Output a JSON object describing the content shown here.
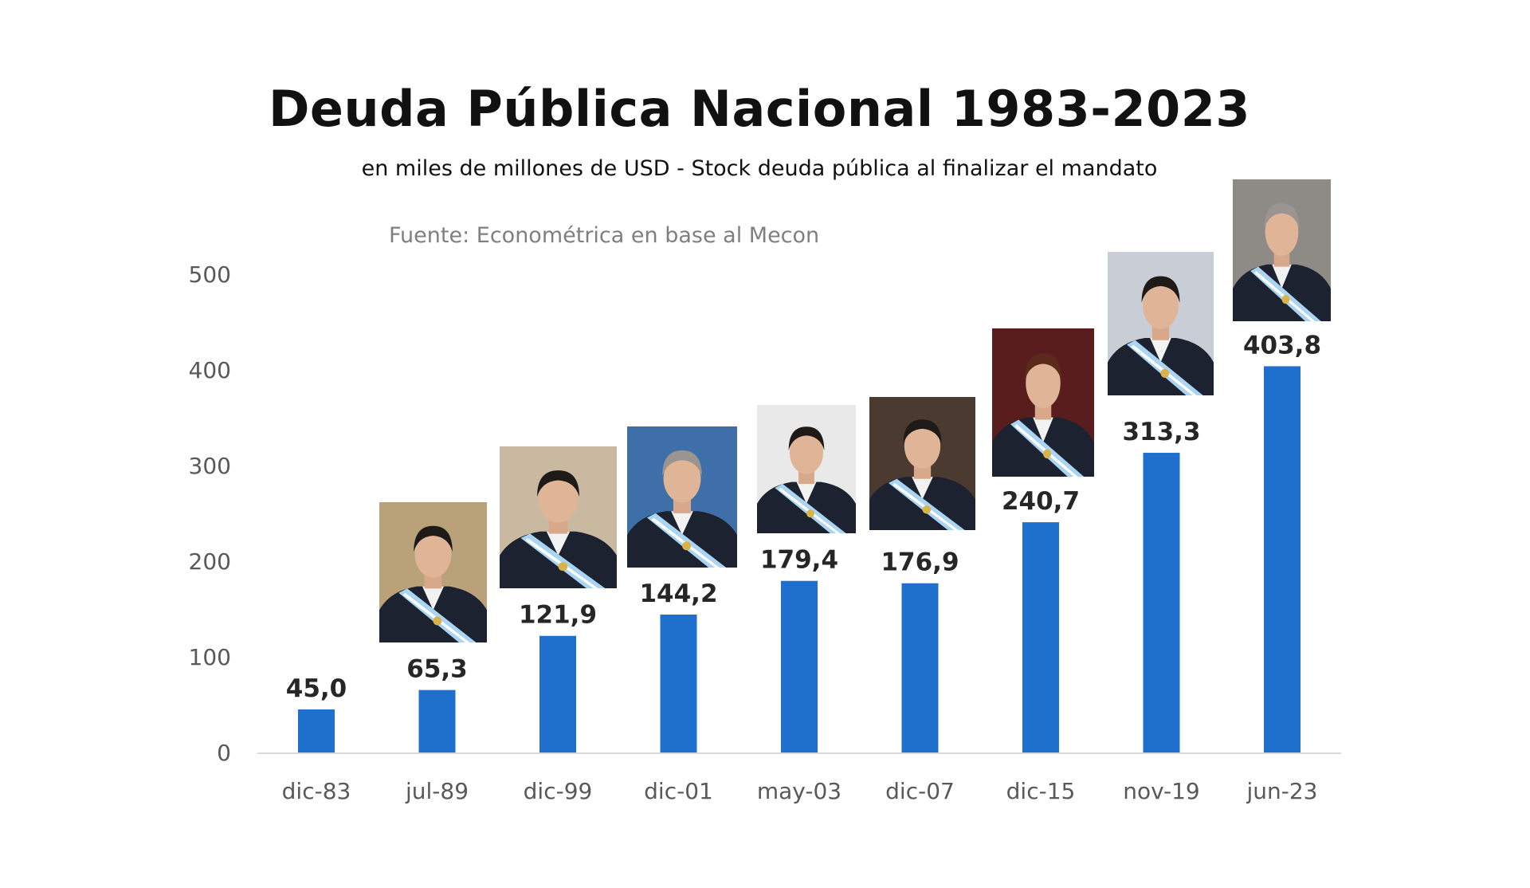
{
  "chart_data": {
    "type": "bar",
    "title": "Deuda Pública Nacional 1983-2023",
    "subtitle": "en miles de millones de USD - Stock deuda pública al finalizar el mandato",
    "source": "Fuente: Econométrica en base al Mecon",
    "categories": [
      "dic-83",
      "jul-89",
      "dic-99",
      "dic-01",
      "may-03",
      "dic-07",
      "dic-15",
      "nov-19",
      "jun-23"
    ],
    "values": [
      45.0,
      65.3,
      121.9,
      144.2,
      179.4,
      176.9,
      240.7,
      313.3,
      403.8
    ],
    "data_labels": [
      "45,0",
      "65,3",
      "121,9",
      "144,2",
      "179,4",
      "176,9",
      "240,7",
      "313,3",
      "403,8"
    ],
    "xlabel": "",
    "ylabel": "",
    "ylim": [
      0,
      500
    ],
    "yticks": [
      0,
      100,
      200,
      300,
      400,
      500
    ],
    "grid": false,
    "bar_color": "#1f6fcc",
    "label_color": "#262626",
    "tick_color": "#595959"
  }
}
